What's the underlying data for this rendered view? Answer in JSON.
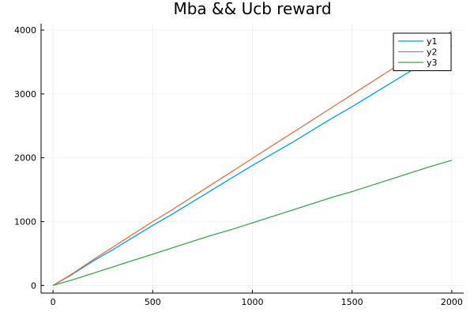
{
  "chart_data": {
    "type": "line",
    "title": "Mba && Ucb reward",
    "xlabel": "",
    "ylabel": "",
    "xlim": [
      -60,
      2060
    ],
    "ylim": [
      -120,
      4100
    ],
    "xticks": [
      0,
      500,
      1000,
      1500,
      2000
    ],
    "yticks": [
      0,
      1000,
      2000,
      3000,
      4000
    ],
    "grid": true,
    "legend_position": "top-right",
    "series": [
      {
        "name": "y1",
        "color": "#009af9",
        "x": [
          0,
          100,
          200,
          300,
          400,
          500,
          600,
          700,
          800,
          900,
          1000,
          1100,
          1200,
          1300,
          1400,
          1500,
          1600,
          1700,
          1800,
          1900,
          2000
        ],
        "y": [
          0,
          180,
          380,
          560,
          750,
          940,
          1120,
          1310,
          1500,
          1690,
          1880,
          2060,
          2240,
          2430,
          2620,
          2800,
          2990,
          3180,
          3370,
          3560,
          3750
        ]
      },
      {
        "name": "y2",
        "color": "#e26f46",
        "x": [
          0,
          100,
          200,
          300,
          400,
          500,
          600,
          700,
          800,
          900,
          1000,
          1100,
          1200,
          1300,
          1400,
          1500,
          1600,
          1700,
          1800,
          1900,
          2000
        ],
        "y": [
          0,
          190,
          400,
          600,
          800,
          1000,
          1190,
          1390,
          1590,
          1790,
          1990,
          2190,
          2390,
          2590,
          2790,
          2990,
          3190,
          3390,
          3590,
          3790,
          3980
        ]
      },
      {
        "name": "y3",
        "color": "#3da44d",
        "x": [
          0,
          100,
          200,
          300,
          400,
          500,
          600,
          700,
          800,
          900,
          1000,
          1100,
          1200,
          1300,
          1400,
          1500,
          1600,
          1700,
          1800,
          1900,
          2000
        ],
        "y": [
          0,
          90,
          190,
          290,
          390,
          490,
          590,
          690,
          790,
          880,
          980,
          1080,
          1180,
          1280,
          1380,
          1470,
          1570,
          1670,
          1770,
          1870,
          1960
        ]
      }
    ]
  }
}
